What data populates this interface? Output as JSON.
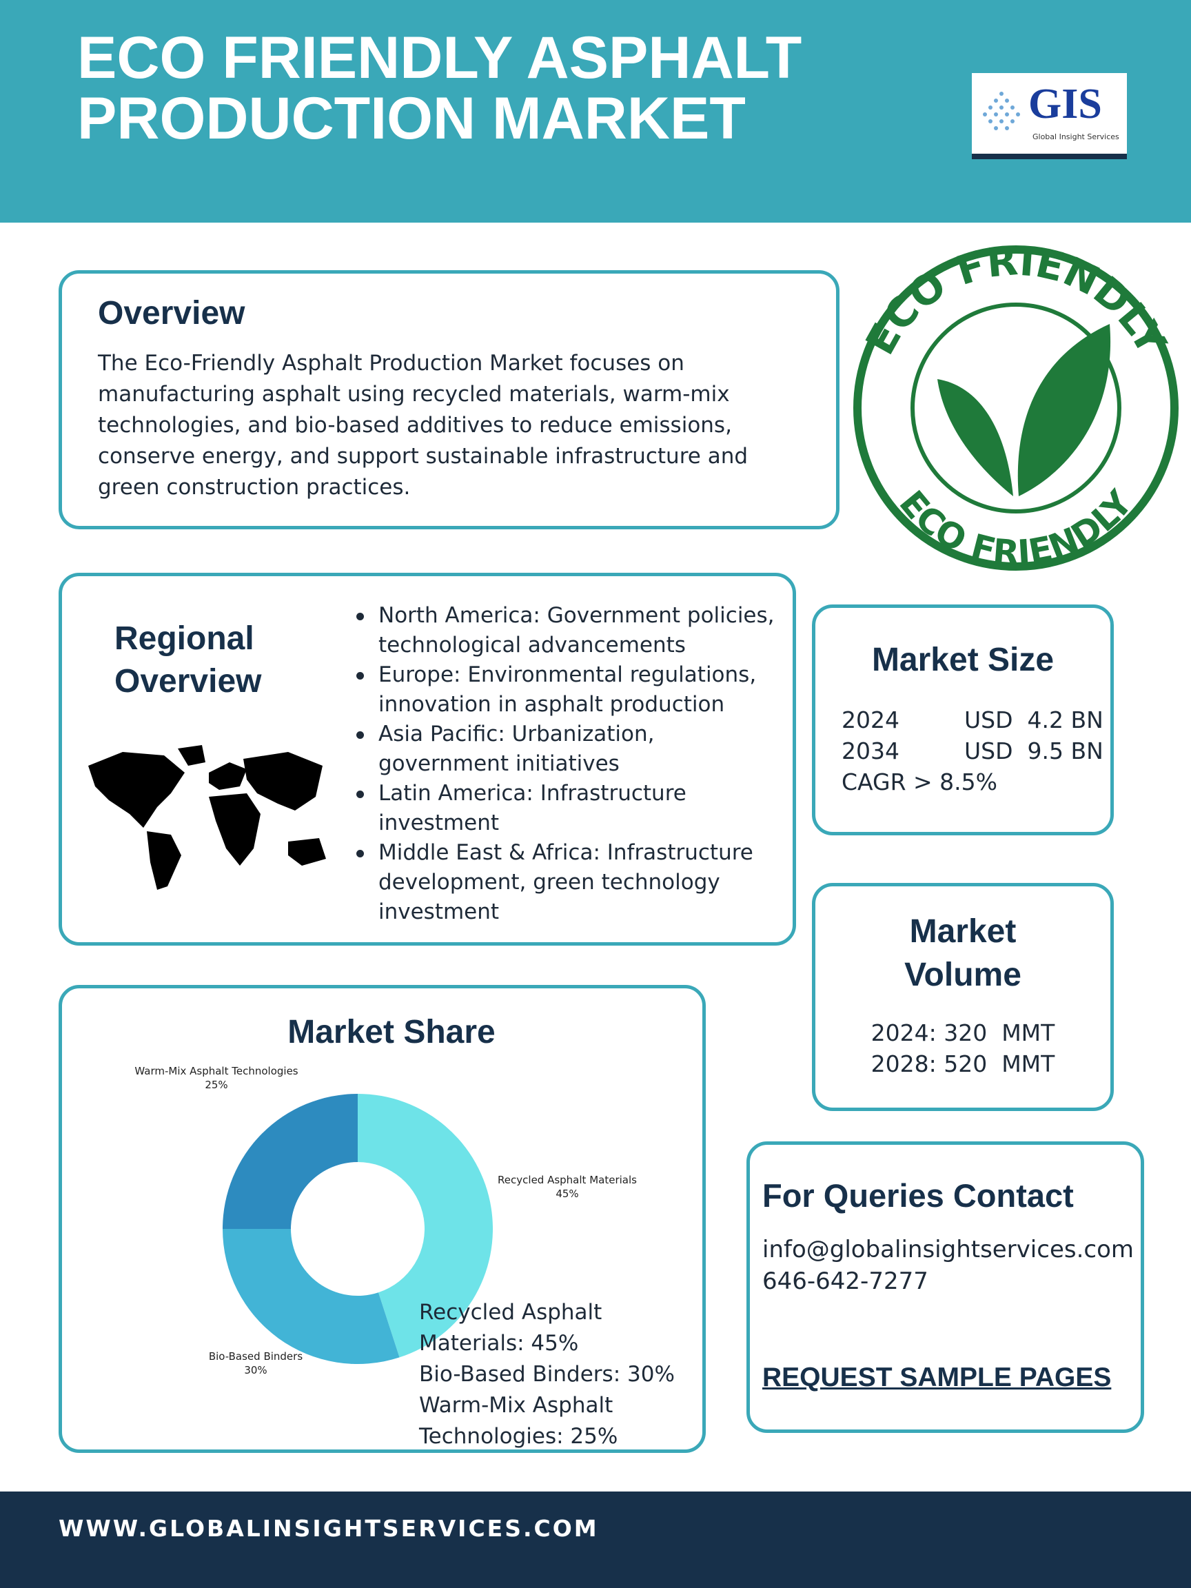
{
  "header": {
    "title": "ECO FRIENDLY ASPHALT PRODUCTION MARKET"
  },
  "logo": {
    "name": "GIS",
    "tagline": "Global Insight Services"
  },
  "badge": {
    "top": "ECO FRIENDLY",
    "bottom": "ECO FRIENDLY"
  },
  "overview": {
    "heading": "Overview",
    "body": "The Eco-Friendly Asphalt Production Market focuses on manufacturing asphalt using recycled materials, warm-mix technologies, and bio-based additives to reduce emissions, conserve energy, and support sustainable infrastructure and green construction practices."
  },
  "regional": {
    "heading": "Regional Overview",
    "items": [
      "North America: Government policies, technological advancements",
      "Europe: Environmental regulations, innovation in asphalt production",
      "Asia Pacific: Urbanization, government initiatives",
      "Latin America: Infrastructure investment",
      "Middle East & Africa: Infrastructure development, green technology investment"
    ]
  },
  "market_size": {
    "heading": "Market Size",
    "rows": [
      {
        "year": "2024",
        "value": "USD  4.2 BN"
      },
      {
        "year": "2034",
        "value": "USD  9.5 BN"
      }
    ],
    "cagr": "CAGR > 8.5%"
  },
  "market_volume": {
    "heading": "Market Volume",
    "rows": [
      "2024: 320  MMT",
      "2028: 520  MMT"
    ]
  },
  "chart_data": {
    "type": "donut",
    "title": "Market Share",
    "categories": [
      "Recycled Asphalt Materials",
      "Bio-Based Binders",
      "Warm-Mix Asphalt Technologies"
    ],
    "values": [
      45,
      30,
      25
    ],
    "value_labels": [
      "45%",
      "30%",
      "25%"
    ],
    "colors": [
      "#6ee3e8",
      "#42b4d6",
      "#2d8bbf"
    ]
  },
  "market_share_list": [
    "Recycled Asphalt Materials: 45%",
    "Bio-Based Binders: 30%",
    "Warm-Mix Asphalt Technologies: 25%"
  ],
  "contact": {
    "heading": "For Queries Contact",
    "email": "info@globalinsightservices.com",
    "phone": "646-642-7277",
    "cta": "REQUEST SAMPLE PAGES"
  },
  "footer": {
    "url": "WWW.GLOBALINSIGHTSERVICES.COM"
  }
}
